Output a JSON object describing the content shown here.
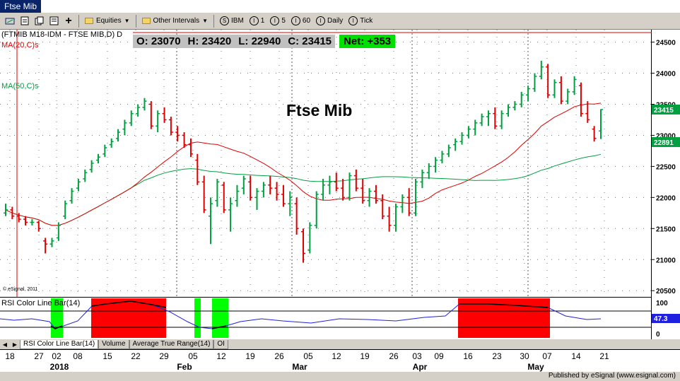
{
  "window": {
    "title": "Ftse Mib"
  },
  "toolbar": {
    "equities_label": "Equities",
    "intervals_label": "Other Intervals",
    "ibm": {
      "icon": "S",
      "label": "IBM"
    },
    "i1": {
      "icon": "I",
      "label": "1"
    },
    "i5": {
      "icon": "I",
      "label": "5"
    },
    "i60": {
      "icon": "I",
      "label": "60"
    },
    "daily": {
      "icon": "I",
      "label": "Daily"
    },
    "tick": {
      "icon": "I",
      "label": "Tick"
    }
  },
  "chart": {
    "symbol": "(FTMIB M18-IDM - FTSE MIB,D) D",
    "ma20_label": "MA(20,C)s",
    "ma50_label": "MA(50,C)s",
    "title": "Ftse Mib",
    "copyright": "© eSignal, 2011",
    "ohlc": {
      "open": "O: 23070",
      "high": "H: 23420",
      "low": "L: 22940",
      "close": "C: 23415",
      "net": "Net: +353"
    },
    "last_price_label": "23415",
    "ma_price_label": "22891",
    "rsi_label": "RSI Color Line Bar(14)",
    "rsi_value_label": "47.3",
    "colors": {
      "up": "#00a040",
      "down": "#e00000",
      "ma20": "#e00000",
      "ma50": "#00a040",
      "rsi_line": "#2020e0",
      "net_bg": "#00e000"
    }
  },
  "yaxis": {
    "ticks": [
      "24500",
      "24000",
      "23500",
      "23000",
      "22500",
      "22000",
      "21500",
      "21000",
      "20500"
    ]
  },
  "rsi_axis": {
    "ticks": [
      "100",
      "0"
    ]
  },
  "tabs": [
    "RSI Color Line Bar(14)",
    "Volume",
    "Average True Range(14)",
    "OI"
  ],
  "xaxis": {
    "ticks": [
      "18",
      "27",
      "02",
      "08",
      "15",
      "22",
      "29",
      "05",
      "12",
      "19",
      "26",
      "05",
      "12",
      "19",
      "26",
      "03",
      "09",
      "16",
      "23",
      "30",
      "07",
      "14",
      "21"
    ],
    "months": [
      "2018",
      "Feb",
      "Mar",
      "Apr",
      "May"
    ]
  },
  "status": {
    "published": "Published by eSignal (www.esignal.com)"
  },
  "chart_data": {
    "type": "bar",
    "title": "Ftse Mib",
    "ylim": [
      20400,
      24700
    ],
    "bars": [
      [
        21750,
        21900,
        21700,
        21800
      ],
      [
        21800,
        21850,
        21650,
        21700
      ],
      [
        21700,
        21750,
        21600,
        21650
      ],
      [
        21650,
        21700,
        21550,
        21600
      ],
      [
        21600,
        21650,
        21550,
        21600
      ],
      [
        21600,
        21620,
        21450,
        21500
      ],
      [
        21300,
        21350,
        21100,
        21250
      ],
      [
        21250,
        21350,
        21200,
        21300
      ],
      [
        21350,
        21600,
        21300,
        21550
      ],
      [
        21700,
        21950,
        21650,
        21900
      ],
      [
        21950,
        22150,
        21900,
        22100
      ],
      [
        22150,
        22300,
        22100,
        22250
      ],
      [
        22300,
        22450,
        22250,
        22400
      ],
      [
        22450,
        22600,
        22400,
        22550
      ],
      [
        22600,
        22700,
        22550,
        22650
      ],
      [
        22700,
        22850,
        22650,
        22800
      ],
      [
        22850,
        22950,
        22800,
        22900
      ],
      [
        22950,
        23100,
        22900,
        23050
      ],
      [
        23100,
        23250,
        23000,
        23200
      ],
      [
        23200,
        23400,
        23150,
        23350
      ],
      [
        23350,
        23500,
        23300,
        23450
      ],
      [
        23450,
        23600,
        23400,
        23550
      ],
      [
        23500,
        23550,
        23100,
        23150
      ],
      [
        23150,
        23400,
        23050,
        23350
      ],
      [
        23350,
        23450,
        23200,
        23250
      ],
      [
        23250,
        23300,
        23000,
        23050
      ],
      [
        23050,
        23150,
        22900,
        23000
      ],
      [
        23000,
        23050,
        22800,
        22850
      ],
      [
        22850,
        22950,
        22650,
        22700
      ],
      [
        22600,
        22700,
        22200,
        22250
      ],
      [
        22250,
        22350,
        21750,
        21800
      ],
      [
        21700,
        22000,
        21250,
        21900
      ],
      [
        21950,
        22300,
        21850,
        22250
      ],
      [
        22200,
        22250,
        21750,
        21800
      ],
      [
        21800,
        22000,
        21450,
        21900
      ],
      [
        21950,
        22200,
        21850,
        22100
      ],
      [
        22150,
        22350,
        22050,
        22300
      ],
      [
        22250,
        22350,
        21950,
        22000
      ],
      [
        22000,
        22150,
        21800,
        22100
      ],
      [
        22100,
        22250,
        22000,
        22200
      ],
      [
        22200,
        22350,
        22050,
        22150
      ],
      [
        22150,
        22250,
        21950,
        22050
      ],
      [
        22050,
        22200,
        21850,
        21900
      ],
      [
        21900,
        22100,
        21700,
        22000
      ],
      [
        21900,
        22000,
        21400,
        21500
      ],
      [
        21450,
        21500,
        20950,
        21100
      ],
      [
        21150,
        21600,
        21100,
        21550
      ],
      [
        21550,
        22100,
        21500,
        22050
      ],
      [
        22050,
        22300,
        21950,
        22200
      ],
      [
        22200,
        22350,
        22050,
        22250
      ],
      [
        22250,
        22400,
        22100,
        22150
      ],
      [
        22150,
        22300,
        21950,
        22000
      ],
      [
        22000,
        22400,
        21950,
        22350
      ],
      [
        22350,
        22450,
        22100,
        22150
      ],
      [
        22150,
        22300,
        21900,
        21950
      ],
      [
        21950,
        22150,
        21850,
        22100
      ],
      [
        22100,
        22200,
        21900,
        21950
      ],
      [
        21950,
        22050,
        21650,
        21700
      ],
      [
        21700,
        21850,
        21450,
        21550
      ],
      [
        21550,
        21900,
        21450,
        21850
      ],
      [
        21850,
        22050,
        21750,
        22000
      ],
      [
        22000,
        22150,
        21700,
        21750
      ],
      [
        21750,
        22300,
        21700,
        22250
      ],
      [
        22250,
        22450,
        22150,
        22400
      ],
      [
        22400,
        22550,
        22300,
        22500
      ],
      [
        22500,
        22650,
        22400,
        22600
      ],
      [
        22600,
        22750,
        22550,
        22700
      ],
      [
        22700,
        22850,
        22650,
        22800
      ],
      [
        22850,
        22950,
        22750,
        22900
      ],
      [
        22900,
        23050,
        22850,
        23000
      ],
      [
        23000,
        23150,
        22950,
        23100
      ],
      [
        23100,
        23250,
        23000,
        23200
      ],
      [
        23200,
        23350,
        23150,
        23300
      ],
      [
        23300,
        23400,
        23150,
        23350
      ],
      [
        23350,
        23450,
        23100,
        23150
      ],
      [
        23150,
        23400,
        23100,
        23350
      ],
      [
        23350,
        23500,
        23300,
        23450
      ],
      [
        23450,
        23550,
        23400,
        23500
      ],
      [
        23500,
        23700,
        23450,
        23650
      ],
      [
        23650,
        23800,
        23550,
        23750
      ],
      [
        23750,
        24000,
        23700,
        23950
      ],
      [
        23950,
        24200,
        23900,
        24100
      ],
      [
        24100,
        24150,
        23600,
        23650
      ],
      [
        23650,
        23900,
        23600,
        23850
      ],
      [
        23850,
        23950,
        23500,
        23550
      ],
      [
        23550,
        23750,
        23500,
        23700
      ],
      [
        23700,
        23950,
        23650,
        23900
      ],
      [
        23800,
        23850,
        23300,
        23350
      ],
      [
        23350,
        23550,
        23200,
        23250
      ],
      [
        23100,
        23150,
        22900,
        22950
      ],
      [
        23070,
        23420,
        22940,
        23415
      ]
    ]
  }
}
